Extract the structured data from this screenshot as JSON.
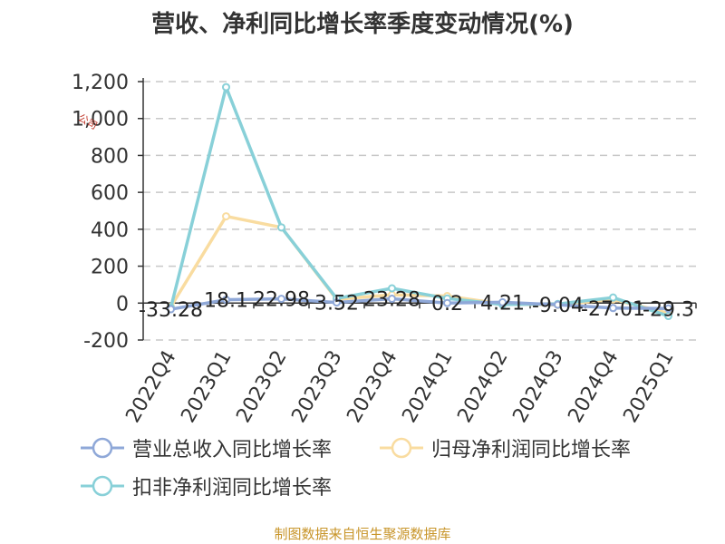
{
  "title": "营收、净利同比增长率季度变动情况(%)",
  "source": "制图数据来自恒生聚源数据库",
  "watermark": "公司",
  "chart_data": {
    "type": "line",
    "title": "营收、净利同比增长率季度变动情况(%)",
    "categories": [
      "2022Q4",
      "2023Q1",
      "2023Q2",
      "2023Q3",
      "2023Q4",
      "2024Q1",
      "2024Q2",
      "2024Q3",
      "2024Q4",
      "2025Q1"
    ],
    "ylim": [
      -200,
      1200
    ],
    "yticks": [
      -200,
      0,
      200,
      400,
      600,
      800,
      1000,
      1200
    ],
    "grid": true,
    "legend_position": "bottom",
    "series": [
      {
        "name": "营业总收入同比增长率",
        "color": "#8fa8d8",
        "values": [
          -33.28,
          18.1,
          22.98,
          3.52,
          23.28,
          0.2,
          4.21,
          -9.04,
          -27.01,
          -29.3
        ],
        "labels": [
          "-33.28",
          "18.1",
          "22.98",
          "3.52",
          "23.28",
          "0.2",
          "4.21",
          "-9.04",
          "-27.01",
          "-29.3"
        ]
      },
      {
        "name": "归母净利润同比增长率",
        "color": "#f9dca0",
        "values": [
          -20,
          470,
          410,
          20,
          45,
          38,
          -5,
          -10,
          20,
          -55
        ]
      },
      {
        "name": "扣非净利润同比增长率",
        "color": "#88d0d8",
        "values": [
          -25,
          1170,
          410,
          25,
          80,
          25,
          -8,
          -5,
          30,
          -70
        ]
      }
    ]
  }
}
